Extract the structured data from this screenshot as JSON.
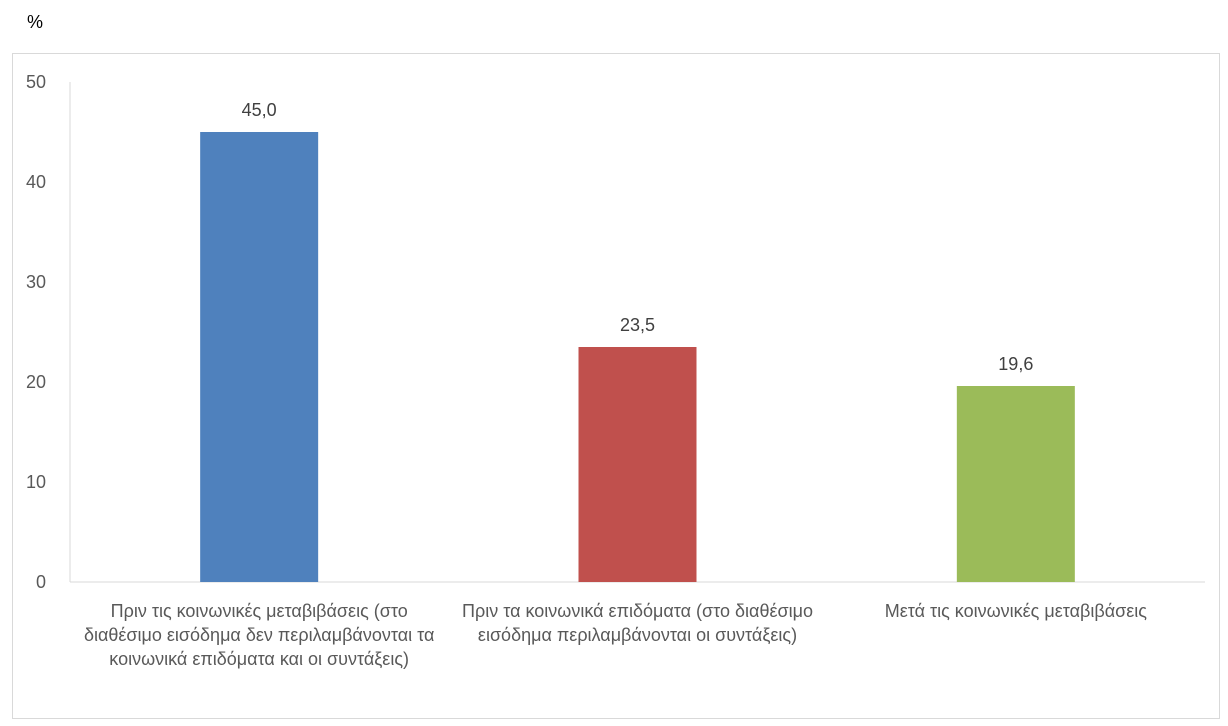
{
  "chart_data": {
    "type": "bar",
    "ylabel": "%",
    "ylim": [
      0,
      50
    ],
    "yticks": [
      0,
      10,
      20,
      30,
      40,
      50
    ],
    "grid": false,
    "categories": [
      "Πριν τις κοινωνικές μεταβιβάσεις (στο διαθέσιμο εισόδημα δεν περιλαμβάνονται τα κοινωνικά επιδόματα και οι συντάξεις)",
      "Πριν τα κοινωνικά επιδόματα (στο διαθέσιμο εισόδημα περιλαμβάνονται οι συντάξεις)",
      "Μετά τις κοινωνικές μεταβιβάσεις"
    ],
    "values": [
      45.0,
      23.5,
      19.6
    ],
    "value_labels": [
      "45,0",
      "23,5",
      "19,6"
    ],
    "colors": [
      "#4f81bd",
      "#c0504d",
      "#9bbb59"
    ]
  }
}
